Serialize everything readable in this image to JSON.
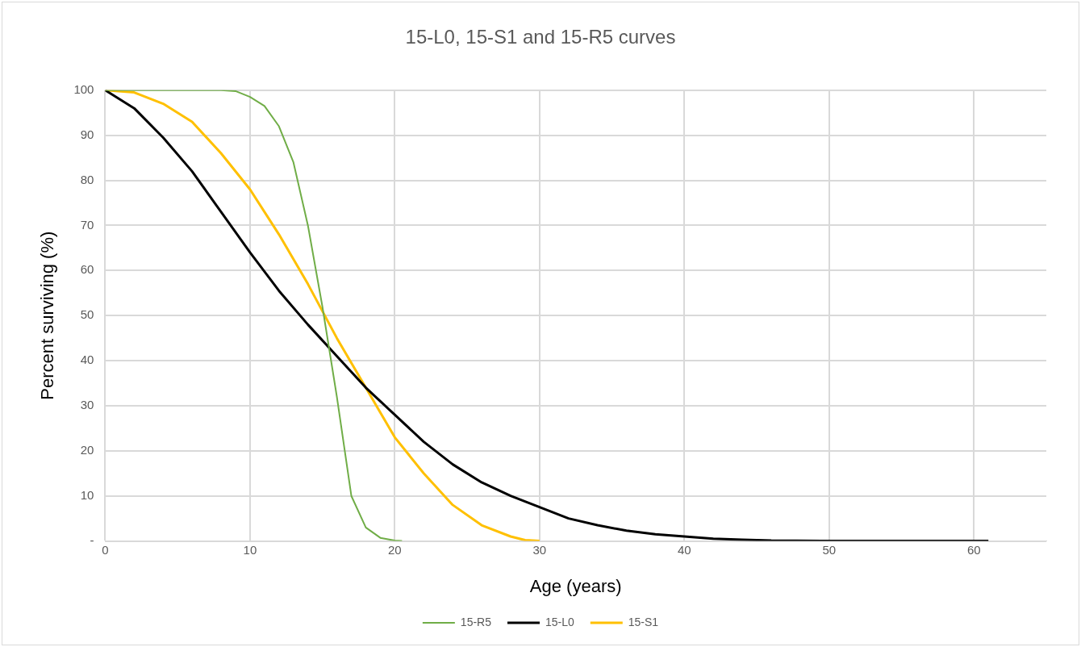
{
  "chart_data": {
    "type": "line",
    "title": "15-L0, 15-S1 and 15-R5 curves",
    "xlabel": "Age (years)",
    "ylabel": "Percent surviving (%)",
    "xlim": [
      0,
      65
    ],
    "xticks": [
      0,
      10,
      20,
      30,
      40,
      50,
      60
    ],
    "ylim": [
      0,
      100
    ],
    "yticks": [
      {
        "value": 0,
        "label": "-"
      },
      10,
      20,
      30,
      40,
      50,
      60,
      70,
      80,
      90,
      100
    ],
    "grid": true,
    "legend": "bottom",
    "marker": "none",
    "series": [
      {
        "name": "15-R5",
        "color": "#70ad47",
        "x": [
          0,
          4,
          8,
          9,
          10,
          11,
          12,
          13,
          14,
          15,
          16,
          17,
          18,
          19,
          20,
          20.5
        ],
        "values": [
          100,
          100,
          100,
          99.8,
          98.5,
          96.5,
          92,
          84,
          70,
          52,
          32,
          10,
          3,
          0.7,
          0.1,
          0
        ]
      },
      {
        "name": "15-L0",
        "color": "#000000",
        "x": [
          0,
          2,
          4,
          6,
          8,
          10,
          12,
          14,
          16,
          18,
          20,
          22,
          24,
          26,
          28,
          30,
          32,
          34,
          36,
          38,
          40,
          42,
          44,
          46,
          50,
          55,
          61
        ],
        "values": [
          100,
          96,
          89.5,
          82,
          73,
          64,
          55.5,
          48,
          41,
          34,
          28,
          22,
          17,
          13,
          10,
          7.5,
          5,
          3.5,
          2.3,
          1.5,
          1,
          0.5,
          0.3,
          0.1,
          0,
          0,
          0
        ]
      },
      {
        "name": "15-S1",
        "color": "#ffc000",
        "x": [
          0,
          2,
          4,
          6,
          8,
          10,
          12,
          14,
          16,
          18,
          20,
          22,
          24,
          26,
          28,
          29,
          30
        ],
        "values": [
          100,
          99.5,
          97,
          93,
          86,
          78,
          68,
          57,
          45,
          34,
          23,
          15,
          8,
          3.5,
          1,
          0.2,
          0
        ]
      }
    ]
  }
}
